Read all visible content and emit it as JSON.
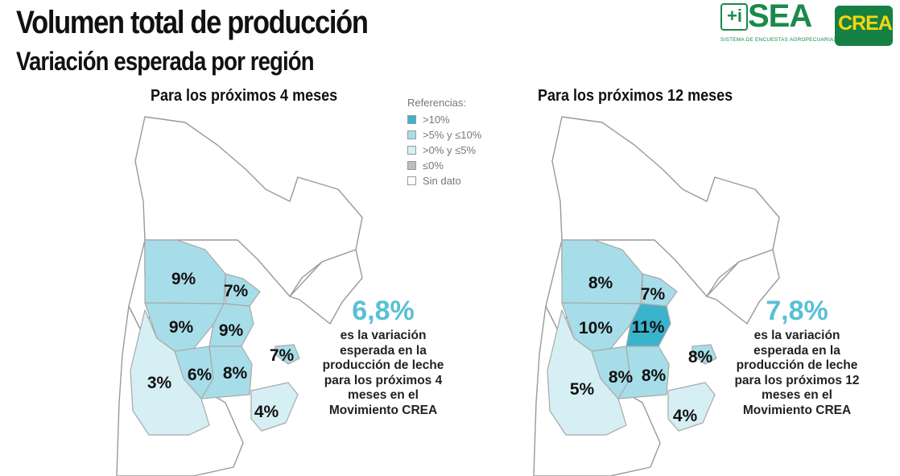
{
  "header": {
    "title": "Volumen total de producción",
    "subtitle": "Variación esperada por región"
  },
  "logos": {
    "sea_mark": "+i",
    "sea_text": "SEA",
    "sea_subtitle": "SISTEMA DE ENCUESTAS AGROPECUARIAS",
    "crea_text": "CREA"
  },
  "legend": {
    "title": "Referencias:",
    "items": [
      {
        "label": ">10%",
        "color": "#3ab3cd"
      },
      {
        "label": ">5% y ≤10%",
        "color": "#a7dde8"
      },
      {
        "label": ">0% y ≤5%",
        "color": "#d6eff4"
      },
      {
        "label": "≤0%",
        "color": "#bdbdbd"
      },
      {
        "label": "Sin dato",
        "color": "#ffffff"
      }
    ]
  },
  "maps": [
    {
      "period_label": "Para los próximos 4 meses",
      "regions": {
        "norte_cordoba": "9%",
        "santa_fe_norte": "7%",
        "sur_cordoba": "9%",
        "santa_fe_centro": "9%",
        "oeste": "3%",
        "sur_santa_fe": "6%",
        "bs_as_norte": "8%",
        "entre_rios": "7%",
        "bs_as_sur": "4%"
      },
      "summary_value": "6,8%",
      "summary_text": [
        "es la variación",
        "esperada en la",
        "producción de leche",
        "para los próximos 4",
        "meses en el",
        "Movimiento CREA"
      ]
    },
    {
      "period_label": "Para los próximos 12 meses",
      "regions": {
        "norte_cordoba": "8%",
        "santa_fe_norte": "7%",
        "sur_cordoba": "10%",
        "santa_fe_centro": "11%",
        "oeste": "5%",
        "sur_santa_fe": "8%",
        "bs_as_norte": "8%",
        "entre_rios": "8%",
        "bs_as_sur": "4%"
      },
      "summary_value": "7,8%",
      "summary_text": [
        "es la variación",
        "esperada en la",
        "producción de leche",
        "para los próximos 12",
        "meses en el",
        "Movimiento CREA"
      ]
    }
  ]
}
